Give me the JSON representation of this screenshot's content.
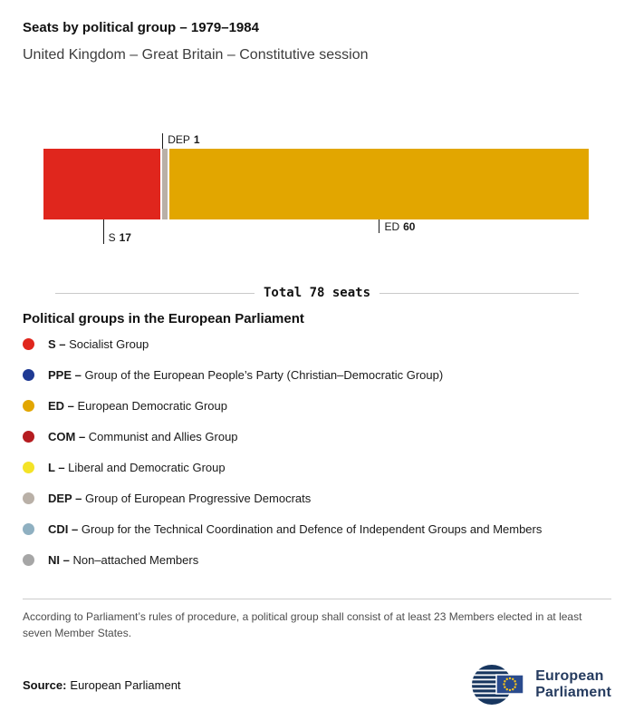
{
  "header": {
    "title": "Seats by political group – 1979–1984",
    "subtitle": "United Kingdom – Great Britain – Constitutive session"
  },
  "chart_data": {
    "type": "bar",
    "variant": "horizontal-stacked",
    "title": "Seats by political group – 1979–1984",
    "total": 78,
    "total_label": "Total 78 seats",
    "categories": [
      "S",
      "DEP",
      "ED"
    ],
    "series": [
      {
        "name": "S",
        "value": 17,
        "color": "#e0261d",
        "label": {
          "position": "below",
          "anchor": "center",
          "long": true
        }
      },
      {
        "name": "DEP",
        "value": 1,
        "color": "#b9b0a7",
        "label": {
          "position": "above",
          "anchor": "start"
        }
      },
      {
        "name": "ED",
        "value": 60,
        "color": "#e2a600",
        "label": {
          "position": "below",
          "anchor": "center"
        }
      }
    ],
    "legend_position": "below"
  },
  "legend": {
    "heading": "Political groups in the European Parliament",
    "items": [
      {
        "abbr": "S –",
        "name": "Socialist Group",
        "color": "#e0261d"
      },
      {
        "abbr": "PPE –",
        "name": "Group of the European People’s Party (Christian–Democratic Group)",
        "color": "#1f3a93"
      },
      {
        "abbr": "ED –",
        "name": "European Democratic Group",
        "color": "#e2a600"
      },
      {
        "abbr": "COM –",
        "name": "Communist and Allies Group",
        "color": "#b51c20"
      },
      {
        "abbr": "L –",
        "name": "Liberal and Democratic Group",
        "color": "#f4e327"
      },
      {
        "abbr": "DEP –",
        "name": "Group of European Progressive Democrats",
        "color": "#b9b0a7"
      },
      {
        "abbr": "CDI –",
        "name": "Group for the Technical Coordination and Defence of Independent Groups and Members",
        "color": "#8fb0c1"
      },
      {
        "abbr": "NI –",
        "name": "Non–attached Members",
        "color": "#a6a6a6"
      }
    ]
  },
  "footnote": "According to Parliament’s rules of procedure, a political group shall consist of at least 23 Members elected in at least seven Member States.",
  "source": {
    "label": "Source:",
    "value": "European Parliament"
  },
  "logo": {
    "line1": "European",
    "line2": "Parliament"
  },
  "colors": {
    "flag_blue": "#2a4b8d",
    "star_gold": "#f8c51c",
    "mark_navy": "#17365f"
  }
}
